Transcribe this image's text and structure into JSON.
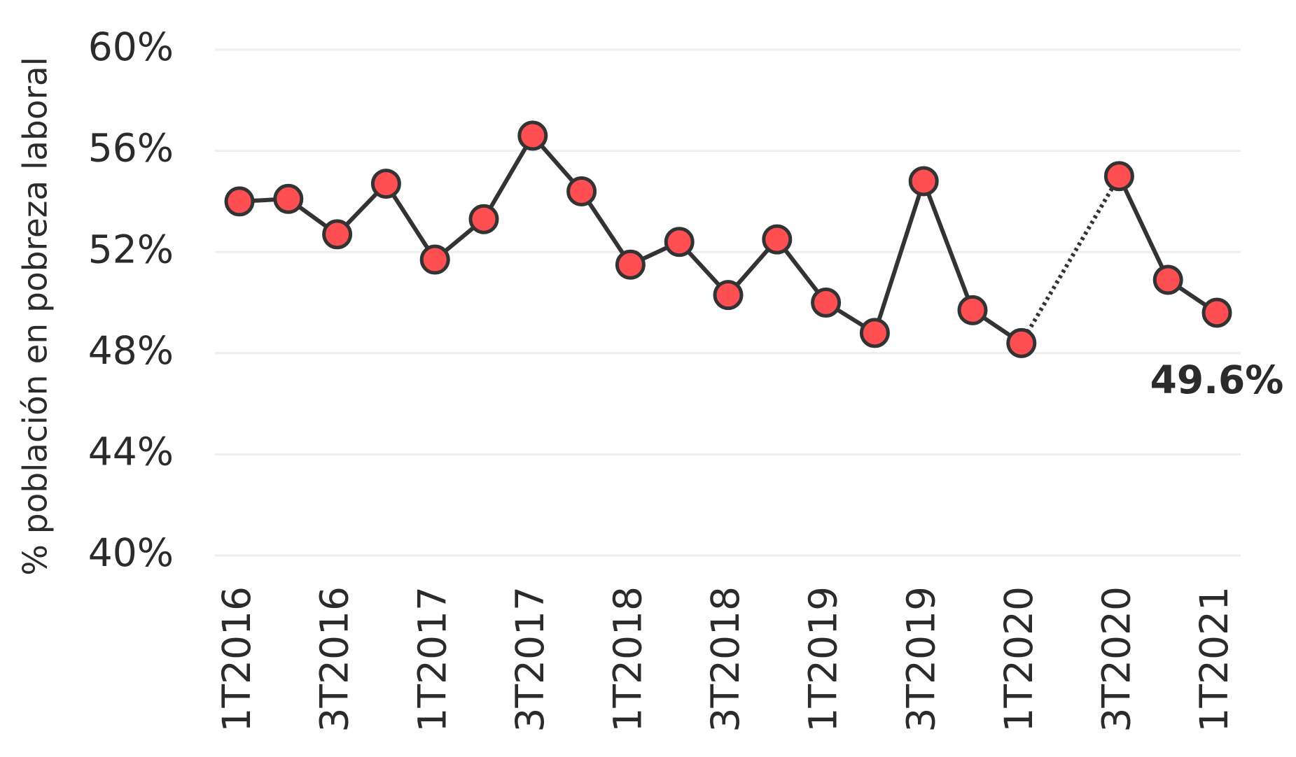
{
  "chart_data": {
    "type": "line",
    "y_label": "% población en pobreza laboral",
    "categories": [
      "1T2016",
      null,
      "3T2016",
      null,
      "1T2017",
      null,
      "3T2017",
      null,
      "1T2018",
      null,
      "3T2018",
      null,
      "1T2019",
      null,
      "3T2019",
      null,
      "1T2020",
      null,
      "3T2020",
      null,
      "1T2021"
    ],
    "series": [
      {
        "name": "Pobreza laboral",
        "color": "#ff4f52",
        "line_color": "#333333",
        "values": [
          54.0,
          54.1,
          52.7,
          54.7,
          51.7,
          53.3,
          56.6,
          54.4,
          51.5,
          52.4,
          50.3,
          52.5,
          50.0,
          48.8,
          54.8,
          49.7,
          48.4,
          null,
          55.0,
          50.9,
          49.6
        ],
        "value_labels": [
          null,
          null,
          null,
          null,
          null,
          null,
          null,
          null,
          null,
          null,
          null,
          null,
          null,
          null,
          null,
          null,
          null,
          null,
          null,
          null,
          "49.6%"
        ]
      }
    ],
    "ylim": [
      40,
      60
    ],
    "yticks": [
      {
        "value": 40,
        "label": "40%"
      },
      {
        "value": 44,
        "label": "44%"
      },
      {
        "value": 48,
        "label": "48%"
      },
      {
        "value": 52,
        "label": "52%"
      },
      {
        "value": 56,
        "label": "56%"
      },
      {
        "value": 60,
        "label": "60%"
      }
    ],
    "grid": true
  }
}
